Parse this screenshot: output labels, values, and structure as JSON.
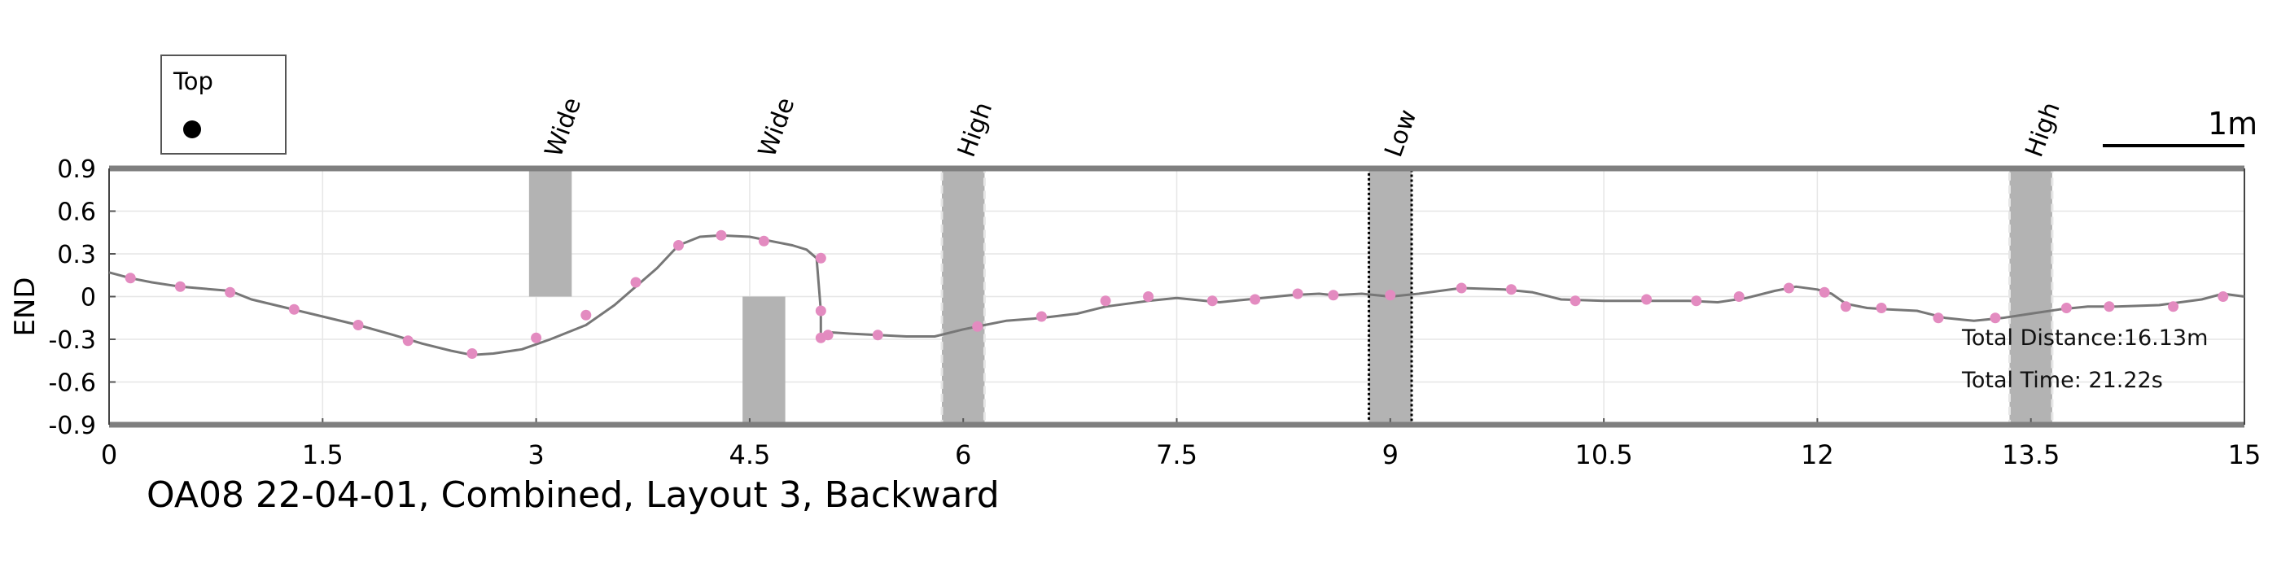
{
  "caption": "OA08 22-04-01, Combined, Layout 3, Backward",
  "orientation": {
    "label": "Top"
  },
  "scale_bar": {
    "label": "1m"
  },
  "stats": {
    "total_distance": "Total Distance:16.13m",
    "total_time": "Total Time: 21.22s"
  },
  "colors": {
    "line": "#777777",
    "marker": "#e38bc0",
    "zone": "#b3b3b3",
    "axis_band": "#7f7f7f",
    "grid": "#e6e6e6"
  },
  "chart_data": {
    "type": "line",
    "title": "",
    "xlabel": "",
    "ylabel": "END",
    "xlim": [
      0,
      15
    ],
    "ylim": [
      -0.9,
      0.9
    ],
    "x_ticks": [
      "0",
      "1.5",
      "3",
      "4.5",
      "6",
      "7.5",
      "9",
      "10.5",
      "12",
      "13.5",
      "15"
    ],
    "y_ticks": [
      "0.9",
      "0.6",
      "0.3",
      "0",
      "-0.3",
      "-0.6",
      "-0.9"
    ],
    "grid": true,
    "series": [
      {
        "x": [
          0,
          0.15,
          0.3,
          0.5,
          0.85,
          1.0,
          1.25,
          1.5,
          1.75,
          2.0,
          2.2,
          2.4,
          2.55,
          2.7,
          2.9,
          3.1,
          3.35,
          3.55,
          3.7,
          3.85,
          4.0,
          4.15,
          4.3,
          4.5,
          4.65,
          4.8,
          4.9,
          4.97,
          5.0,
          5.0,
          5.02,
          5.05,
          5.2,
          5.4,
          5.6,
          5.8,
          6.0,
          6.15,
          6.3,
          6.55,
          6.8,
          7.0,
          7.3,
          7.5,
          7.8,
          8.0,
          8.3,
          8.5,
          8.6,
          8.8,
          9.0,
          9.2,
          9.5,
          9.8,
          10.0,
          10.2,
          10.5,
          10.7,
          10.9,
          11.1,
          11.3,
          11.5,
          11.7,
          11.85,
          12.0,
          12.1,
          12.2,
          12.35,
          12.5,
          12.7,
          12.9,
          13.1,
          13.3,
          13.5,
          13.7,
          13.9,
          14.1,
          14.4,
          14.7,
          14.85,
          15.0
        ],
        "y": [
          0.17,
          0.13,
          0.1,
          0.07,
          0.04,
          -0.02,
          -0.08,
          -0.14,
          -0.2,
          -0.27,
          -0.33,
          -0.38,
          -0.41,
          -0.4,
          -0.37,
          -0.3,
          -0.2,
          -0.06,
          0.07,
          0.2,
          0.36,
          0.42,
          0.43,
          0.42,
          0.39,
          0.36,
          0.33,
          0.27,
          -0.1,
          -0.29,
          -0.3,
          -0.25,
          -0.26,
          -0.27,
          -0.28,
          -0.28,
          -0.23,
          -0.2,
          -0.17,
          -0.15,
          -0.12,
          -0.07,
          -0.03,
          -0.01,
          -0.04,
          -0.02,
          0.01,
          0.02,
          0.01,
          0.02,
          0.0,
          0.02,
          0.06,
          0.05,
          0.03,
          -0.02,
          -0.03,
          -0.03,
          -0.03,
          -0.03,
          -0.04,
          -0.01,
          0.04,
          0.07,
          0.05,
          0.02,
          -0.05,
          -0.08,
          -0.09,
          -0.1,
          -0.15,
          -0.17,
          -0.15,
          -0.12,
          -0.09,
          -0.07,
          -0.07,
          -0.06,
          -0.02,
          0.02,
          0.0
        ]
      }
    ],
    "markers": {
      "x": [
        0.15,
        0.5,
        0.85,
        1.3,
        1.75,
        2.1,
        2.55,
        3.0,
        3.35,
        3.7,
        4.0,
        4.3,
        4.6,
        5.0,
        5.0,
        5.0,
        5.05,
        5.4,
        6.1,
        6.55,
        7.0,
        7.3,
        7.75,
        8.05,
        8.35,
        8.6,
        9.0,
        9.5,
        9.85,
        10.3,
        10.8,
        11.15,
        11.45,
        11.8,
        12.05,
        12.2,
        12.45,
        12.85,
        13.25,
        13.75,
        14.05,
        14.5,
        14.85
      ],
      "y": [
        0.13,
        0.07,
        0.03,
        -0.09,
        -0.2,
        -0.31,
        -0.4,
        -0.29,
        -0.13,
        0.1,
        0.36,
        0.43,
        0.39,
        0.27,
        -0.1,
        -0.29,
        -0.27,
        -0.27,
        -0.21,
        -0.14,
        -0.03,
        0.0,
        -0.03,
        -0.02,
        0.02,
        0.01,
        0.01,
        0.06,
        0.05,
        -0.03,
        -0.02,
        -0.03,
        0.0,
        0.06,
        0.03,
        -0.07,
        -0.08,
        -0.15,
        -0.15,
        -0.08,
        -0.07,
        -0.07,
        0.0
      ]
    },
    "zones": [
      {
        "label": "Wide",
        "x0": 2.95,
        "x1": 3.25,
        "y0": 0.0,
        "y1": 0.9,
        "style": "solid"
      },
      {
        "label": "Wide",
        "x0": 4.45,
        "x1": 4.75,
        "y0": -0.9,
        "y1": 0.0,
        "style": "solid"
      },
      {
        "label": "High",
        "x0": 5.85,
        "x1": 6.15,
        "y0": -0.9,
        "y1": 0.9,
        "style": "dashed"
      },
      {
        "label": "Low",
        "x0": 8.85,
        "x1": 9.15,
        "y0": -0.9,
        "y1": 0.9,
        "style": "dotted"
      },
      {
        "label": "High",
        "x0": 13.35,
        "x1": 13.65,
        "y0": -0.9,
        "y1": 0.9,
        "style": "dashed"
      }
    ]
  }
}
